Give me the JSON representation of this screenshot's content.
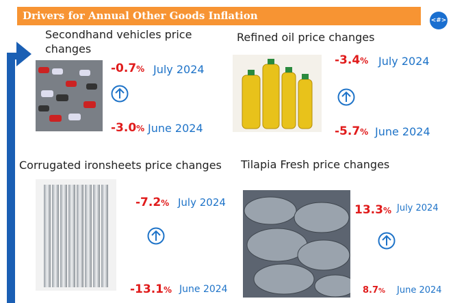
{
  "header": {
    "title": "Drivers for Annual Other Goods Inflation",
    "page_number": "<#>"
  },
  "panels": [
    {
      "title": "Secondhand vehicles price changes",
      "rows": [
        {
          "number": "-0.7",
          "unit": "%",
          "period": "July 2024"
        },
        {
          "number": "-3.0",
          "unit": "%",
          "period": "June 2024"
        }
      ]
    },
    {
      "title": "Refined oil price changes",
      "rows": [
        {
          "number": "-3.4",
          "unit": "%",
          "period": "July 2024"
        },
        {
          "number": "-5.7",
          "unit": "%",
          "period": "June 2024"
        }
      ]
    },
    {
      "title": "Corrugated ironsheets price changes",
      "rows": [
        {
          "number": "-7.2",
          "unit": "%",
          "period": "July 2024"
        },
        {
          "number": "-13.1",
          "unit": "%",
          "period": "June 2024"
        }
      ]
    },
    {
      "title": "Tilapia Fresh price changes",
      "rows": [
        {
          "number": "13.3",
          "unit": "%",
          "period": "July 2024"
        },
        {
          "number": "8.7",
          "unit": "%",
          "period": "June 2024"
        }
      ]
    }
  ]
}
